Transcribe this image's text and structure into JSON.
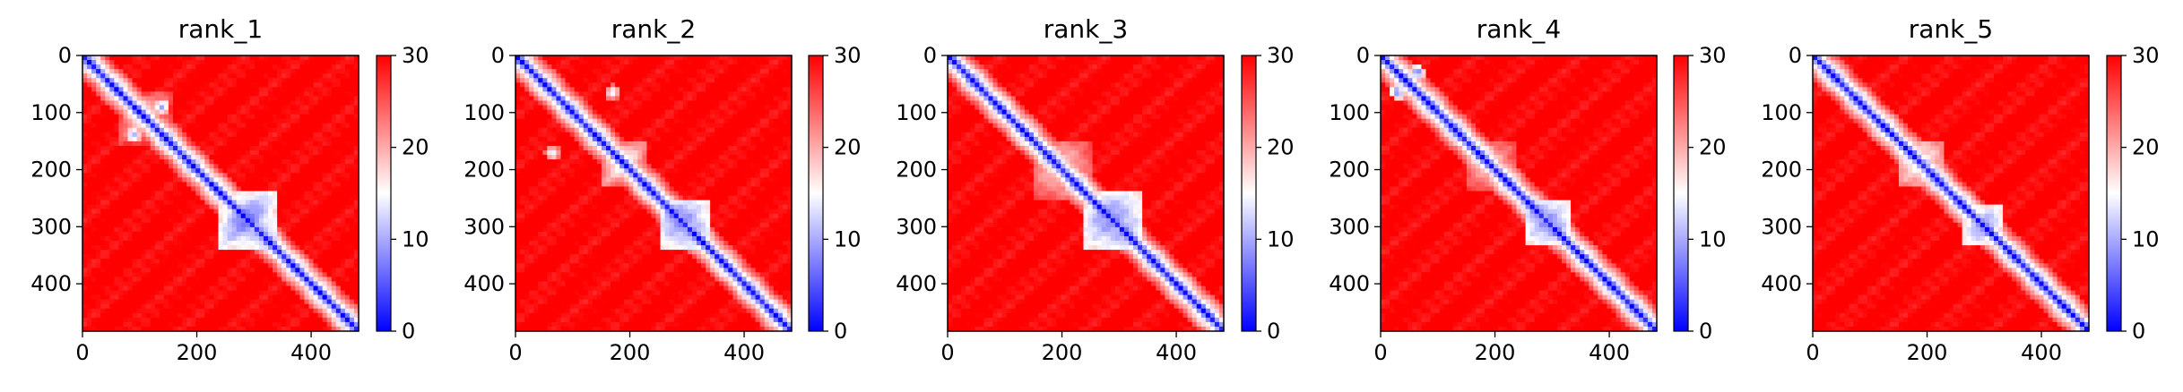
{
  "figure": {
    "layout": "1x5 subplots, each with its own colorbar"
  },
  "chart_data": [
    {
      "type": "heatmap",
      "title": "rank_1",
      "xlim": [
        0,
        483
      ],
      "ylim": [
        483,
        0
      ],
      "xticks": [
        0,
        200,
        400
      ],
      "yticks": [
        0,
        100,
        200,
        300,
        400
      ],
      "colormap": "bwr",
      "vmin": 0,
      "vmax": 30,
      "colorbar_ticks": [
        0,
        10,
        20,
        30
      ],
      "colors": {
        "low": "#0000ff",
        "mid": "#ffffff",
        "high": "#ff0000"
      },
      "features": {
        "diagonal": "low values along diagonal",
        "blocks": [
          {
            "start": 240,
            "end": 340,
            "level": 6
          },
          {
            "start": 60,
            "end": 160,
            "level": 17
          }
        ],
        "spots": [
          {
            "x": 140,
            "y": 90,
            "level": 8
          },
          {
            "x": 90,
            "y": 140,
            "level": 8
          }
        ]
      }
    },
    {
      "type": "heatmap",
      "title": "rank_2",
      "xlim": [
        0,
        483
      ],
      "ylim": [
        483,
        0
      ],
      "xticks": [
        0,
        200,
        400
      ],
      "yticks": [
        0,
        100,
        200,
        300,
        400
      ],
      "colormap": "bwr",
      "vmin": 0,
      "vmax": 30,
      "colorbar_ticks": [
        0,
        10,
        20,
        30
      ],
      "colors": {
        "low": "#0000ff",
        "mid": "#ffffff",
        "high": "#ff0000"
      },
      "features": {
        "diagonal": "low values along diagonal",
        "blocks": [
          {
            "start": 250,
            "end": 340,
            "level": 6
          },
          {
            "start": 150,
            "end": 230,
            "level": 14
          }
        ],
        "spots": [
          {
            "x": 170,
            "y": 65,
            "level": 11
          },
          {
            "x": 65,
            "y": 170,
            "level": 11
          }
        ]
      }
    },
    {
      "type": "heatmap",
      "title": "rank_3",
      "xlim": [
        0,
        483
      ],
      "ylim": [
        483,
        0
      ],
      "xticks": [
        0,
        200,
        400
      ],
      "yticks": [
        0,
        100,
        200,
        300,
        400
      ],
      "colormap": "bwr",
      "vmin": 0,
      "vmax": 30,
      "colorbar_ticks": [
        0,
        10,
        20,
        30
      ],
      "colors": {
        "low": "#0000ff",
        "mid": "#ffffff",
        "high": "#ff0000"
      },
      "features": {
        "diagonal": "low values along diagonal",
        "blocks": [
          {
            "start": 240,
            "end": 340,
            "level": 6
          },
          {
            "start": 150,
            "end": 250,
            "level": 15
          }
        ],
        "spots": []
      }
    },
    {
      "type": "heatmap",
      "title": "rank_4",
      "xlim": [
        0,
        483
      ],
      "ylim": [
        483,
        0
      ],
      "xticks": [
        0,
        200,
        400
      ],
      "yticks": [
        0,
        100,
        200,
        300,
        400
      ],
      "colormap": "bwr",
      "vmin": 0,
      "vmax": 30,
      "colorbar_ticks": [
        0,
        10,
        20,
        30
      ],
      "colors": {
        "low": "#0000ff",
        "mid": "#ffffff",
        "high": "#ff0000"
      },
      "features": {
        "diagonal": "low values along diagonal",
        "blocks": [
          {
            "start": 250,
            "end": 330,
            "level": 6
          },
          {
            "start": 150,
            "end": 240,
            "level": 16
          }
        ],
        "spots": [
          {
            "x": 65,
            "y": 30,
            "level": 7
          },
          {
            "x": 30,
            "y": 65,
            "level": 7
          }
        ]
      }
    },
    {
      "type": "heatmap",
      "title": "rank_5",
      "xlim": [
        0,
        483
      ],
      "ylim": [
        483,
        0
      ],
      "xticks": [
        0,
        200,
        400
      ],
      "yticks": [
        0,
        100,
        200,
        300,
        400
      ],
      "colormap": "bwr",
      "vmin": 0,
      "vmax": 30,
      "colorbar_ticks": [
        0,
        10,
        20,
        30
      ],
      "colors": {
        "low": "#0000ff",
        "mid": "#ffffff",
        "high": "#ff0000"
      },
      "features": {
        "diagonal": "low values along diagonal",
        "blocks": [
          {
            "start": 260,
            "end": 330,
            "level": 7
          },
          {
            "start": 150,
            "end": 230,
            "level": 12
          }
        ],
        "spots": [
          {
            "x": 200,
            "y": 190,
            "level": 8
          }
        ]
      }
    }
  ]
}
